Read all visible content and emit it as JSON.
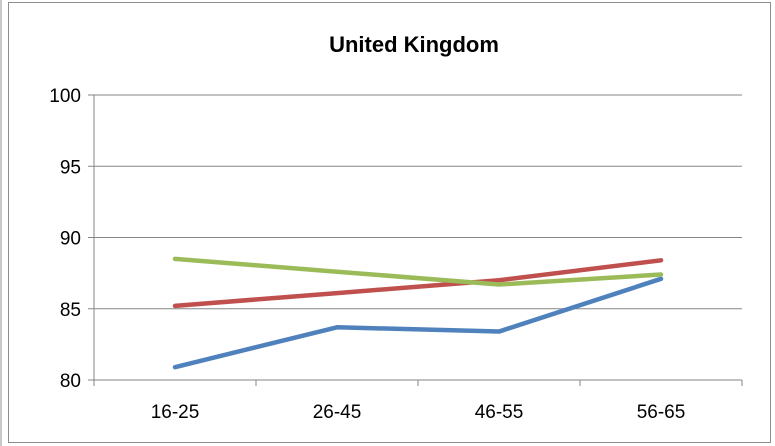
{
  "chart_data": {
    "type": "line",
    "title": "United Kingdom",
    "xlabel": "",
    "ylabel": "",
    "categories": [
      "16-25",
      "26-45",
      "46-55",
      "56-65"
    ],
    "ylim": [
      80,
      100
    ],
    "yticks": [
      80,
      85,
      90,
      95,
      100
    ],
    "grid": true,
    "legend": "none",
    "series": [
      {
        "color": "#4f81bd",
        "values": [
          80.9,
          83.7,
          83.4,
          87.1
        ]
      },
      {
        "color": "#c0504d",
        "values": [
          85.2,
          86.1,
          87.0,
          88.4
        ]
      },
      {
        "color": "#9bbb59",
        "values": [
          88.5,
          87.6,
          86.7,
          87.4
        ]
      }
    ]
  }
}
